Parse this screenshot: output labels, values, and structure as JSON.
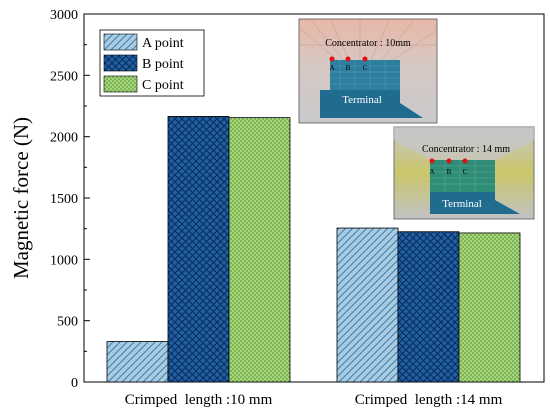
{
  "chart_data": {
    "type": "bar",
    "categories": [
      "Crimped  length :10 mm",
      "Crimped  length :14 mm"
    ],
    "series": [
      {
        "name": "A point",
        "values": [
          330,
          1255
        ],
        "color": "#a9cce3",
        "pattern": "diagonal-hatch"
      },
      {
        "name": "B point",
        "values": [
          2165,
          1225
        ],
        "color": "#1f5fa8",
        "pattern": "crosshatch"
      },
      {
        "name": "C point",
        "values": [
          2155,
          1215
        ],
        "color": "#a6d67a",
        "pattern": "dots"
      }
    ],
    "ylabel": "Magnetic force (N)",
    "xlabel": "",
    "ylim": [
      0,
      3000
    ],
    "yticks": [
      0,
      500,
      1000,
      1500,
      2000,
      2500,
      3000
    ],
    "legend_position": "top-left",
    "grid": false
  },
  "insets": [
    {
      "title": "Concentrator : 10mm",
      "points": [
        "A",
        "B",
        "C"
      ],
      "terminal_label": "Terminal"
    },
    {
      "title": "Concentrator : 14 mm",
      "points": [
        "A",
        "B",
        "C"
      ],
      "terminal_label": "Terminal"
    }
  ]
}
